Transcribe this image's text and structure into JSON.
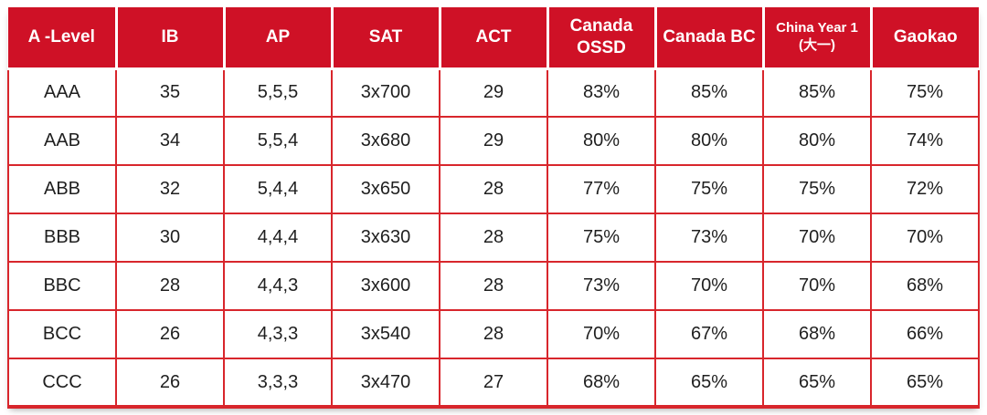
{
  "colors": {
    "header_bg": "#CF1126",
    "header_text": "#FFFFFF",
    "grid_border": "#D8262C",
    "cell_text": "#1F1F1F",
    "page_bg": "#FFFFFF"
  },
  "chart_data": {
    "type": "table",
    "columns": [
      "A -Level",
      "IB",
      "AP",
      "SAT",
      "ACT",
      "Canada\nOSSD",
      "Canada BC",
      "China Year 1\n(大一)",
      "Gaokao"
    ],
    "rows": [
      [
        "AAA",
        "35",
        "5,5,5",
        "3x700",
        "29",
        "83%",
        "85%",
        "85%",
        "75%"
      ],
      [
        "AAB",
        "34",
        "5,5,4",
        "3x680",
        "29",
        "80%",
        "80%",
        "80%",
        "74%"
      ],
      [
        "ABB",
        "32",
        "5,4,4",
        "3x650",
        "28",
        "77%",
        "75%",
        "75%",
        "72%"
      ],
      [
        "BBB",
        "30",
        "4,4,4",
        "3x630",
        "28",
        "75%",
        "73%",
        "70%",
        "70%"
      ],
      [
        "BBC",
        "28",
        "4,4,3",
        "3x600",
        "28",
        "73%",
        "70%",
        "70%",
        "68%"
      ],
      [
        "BCC",
        "26",
        "4,3,3",
        "3x540",
        "28",
        "70%",
        "67%",
        "68%",
        "66%"
      ],
      [
        "CCC",
        "26",
        "3,3,3",
        "3x470",
        "27",
        "68%",
        "65%",
        "65%",
        "65%"
      ]
    ]
  }
}
